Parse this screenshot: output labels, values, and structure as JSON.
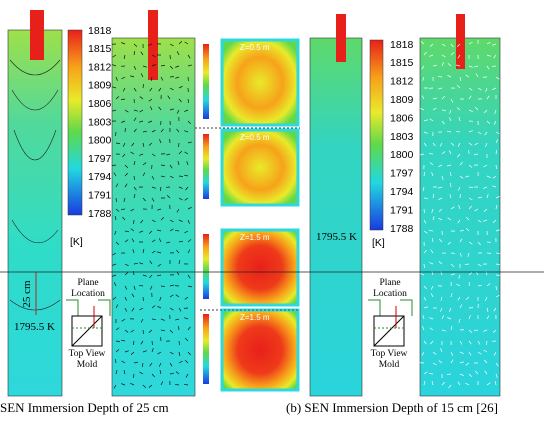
{
  "figure": {
    "left": {
      "colorbar": {
        "ticks": [
          1818,
          1815,
          1812,
          1809,
          1806,
          1803,
          1800,
          1797,
          1794,
          1791,
          1788
        ],
        "unit": "[K]"
      },
      "depth_label": "25 cm",
      "temp_label": "1795.5 K",
      "inset": {
        "plane": [
          "Plane",
          "Location"
        ],
        "mold": [
          "Top View",
          "Mold"
        ]
      },
      "caption": "SEN Immersion Depth of 25 cm"
    },
    "sections": [
      {
        "label": "Z=0.5 m"
      },
      {
        "label": "Z=0.5 m"
      },
      {
        "label": "Z=1.5 m"
      },
      {
        "label": "Z=1.5 m"
      }
    ],
    "right": {
      "colorbar": {
        "ticks": [
          1818,
          1815,
          1812,
          1809,
          1806,
          1803,
          1800,
          1797,
          1794,
          1791,
          1788
        ],
        "unit": "[K]"
      },
      "temp_label": "1795.5 K",
      "inset": {
        "plane": [
          "Plane",
          "Location"
        ],
        "mold": [
          "Top View",
          "Mold"
        ]
      },
      "caption": "(b) SEN Immersion Depth of 15 cm [26]"
    }
  }
}
